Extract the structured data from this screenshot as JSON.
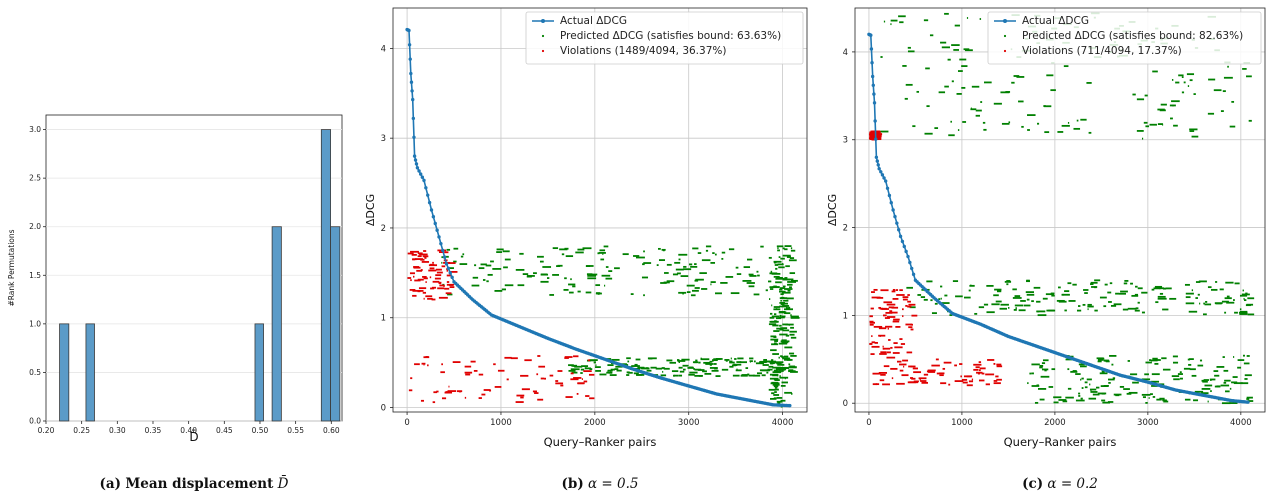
{
  "chart_data": [
    {
      "type": "bar",
      "panel": "a",
      "caption_label": "(a)",
      "caption": "Mean displacement",
      "caption_symbol": "D̄",
      "xlabel": "D̄",
      "ylabel": "#Rank Permutations",
      "xlim": [
        0.2,
        0.615
      ],
      "ylim": [
        0,
        3.15
      ],
      "xticks": [
        "0.20",
        "0.25",
        "0.30",
        "0.35",
        "0.40",
        "0.45",
        "0.50",
        "0.55",
        "0.60"
      ],
      "yticks": [
        "0.0",
        "0.5",
        "1.0",
        "1.5",
        "2.0",
        "2.5",
        "3.0"
      ],
      "bins": [
        {
          "x0": 0.219,
          "x1": 0.232,
          "count": 1
        },
        {
          "x0": 0.256,
          "x1": 0.268,
          "count": 1
        },
        {
          "x0": 0.493,
          "x1": 0.505,
          "count": 1
        },
        {
          "x0": 0.517,
          "x1": 0.53,
          "count": 2
        },
        {
          "x0": 0.586,
          "x1": 0.599,
          "count": 3
        },
        {
          "x0": 0.599,
          "x1": 0.612,
          "count": 2
        }
      ],
      "color": "#5b9bc8",
      "grid": "y"
    },
    {
      "type": "scatter",
      "panel": "b",
      "caption_label": "(b)",
      "caption": "α = 0.5",
      "xlabel": "Query–Ranker pairs",
      "ylabel": "ΔDCG",
      "xlim": [
        -150,
        4260
      ],
      "ylim": [
        -0.05,
        4.45
      ],
      "xticks": [
        "0",
        "1000",
        "2000",
        "3000",
        "4000"
      ],
      "yticks": [
        "0",
        "1",
        "2",
        "3",
        "4"
      ],
      "legend_position": "upper-right",
      "series": [
        {
          "name": "Actual ΔDCG",
          "color": "#1f77b4"
        },
        {
          "name": "Predicted ΔDCG (satisfies bound: 63.63%)",
          "color": "#008000"
        },
        {
          "name": "Violations (1489/4094, 36.37%)",
          "color": "#e00000"
        }
      ],
      "actual_curve": [
        [
          0,
          4.21
        ],
        [
          20,
          4.2
        ],
        [
          40,
          3.72
        ],
        [
          60,
          3.43
        ],
        [
          80,
          2.8
        ],
        [
          110,
          2.67
        ],
        [
          180,
          2.53
        ],
        [
          260,
          2.2
        ],
        [
          340,
          1.9
        ],
        [
          420,
          1.6
        ],
        [
          500,
          1.4
        ],
        [
          700,
          1.2
        ],
        [
          900,
          1.03
        ],
        [
          1200,
          0.9
        ],
        [
          1500,
          0.77
        ],
        [
          1800,
          0.65
        ],
        [
          2100,
          0.54
        ],
        [
          2400,
          0.43
        ],
        [
          2700,
          0.33
        ],
        [
          3000,
          0.24
        ],
        [
          3300,
          0.15
        ],
        [
          3600,
          0.09
        ],
        [
          3900,
          0.03
        ],
        [
          4094,
          0.02
        ]
      ],
      "predicted_bands": [
        {
          "x0": 350,
          "x1": 4090,
          "y0": 1.25,
          "y1": 1.8
        },
        {
          "x0": 1700,
          "x1": 4090,
          "y0": 0.35,
          "y1": 0.55
        },
        {
          "x0": 3850,
          "x1": 4090,
          "y0": 0.0,
          "y1": 1.8
        }
      ],
      "violation_bands": [
        {
          "x0": 0,
          "x1": 460,
          "y0": 1.2,
          "y1": 1.75
        },
        {
          "x0": 0,
          "x1": 2000,
          "y0": 0.05,
          "y1": 0.58
        }
      ],
      "grid": "both"
    },
    {
      "type": "scatter",
      "panel": "c",
      "caption_label": "(c)",
      "caption": "α = 0.2",
      "xlabel": "Query–Ranker pairs",
      "ylabel": "ΔDCG",
      "xlim": [
        -150,
        4260
      ],
      "ylim": [
        -0.1,
        4.5
      ],
      "xticks": [
        "0",
        "1000",
        "2000",
        "3000",
        "4000"
      ],
      "yticks": [
        "0",
        "1",
        "2",
        "3",
        "4"
      ],
      "legend_position": "upper-right",
      "series": [
        {
          "name": "Actual ΔDCG",
          "color": "#1f77b4"
        },
        {
          "name": "Predicted ΔDCG (satisfies bound: 82.63%)",
          "color": "#008000"
        },
        {
          "name": "Violations (711/4094, 17.37%)",
          "color": "#e00000"
        }
      ],
      "actual_curve": [
        [
          0,
          4.2
        ],
        [
          20,
          4.19
        ],
        [
          40,
          3.72
        ],
        [
          60,
          3.42
        ],
        [
          80,
          2.8
        ],
        [
          110,
          2.67
        ],
        [
          180,
          2.53
        ],
        [
          260,
          2.2
        ],
        [
          340,
          1.9
        ],
        [
          420,
          1.67
        ],
        [
          500,
          1.4
        ],
        [
          700,
          1.2
        ],
        [
          900,
          1.02
        ],
        [
          1200,
          0.9
        ],
        [
          1500,
          0.76
        ],
        [
          1800,
          0.65
        ],
        [
          2100,
          0.54
        ],
        [
          2400,
          0.43
        ],
        [
          2700,
          0.32
        ],
        [
          3000,
          0.24
        ],
        [
          3300,
          0.15
        ],
        [
          3600,
          0.09
        ],
        [
          3900,
          0.03
        ],
        [
          4094,
          0.01
        ]
      ],
      "predicted_bands": [
        {
          "x0": 80,
          "x1": 4090,
          "y0": 3.0,
          "y1": 4.45
        },
        {
          "x0": 400,
          "x1": 4090,
          "y0": 1.0,
          "y1": 1.4
        },
        {
          "x0": 1700,
          "x1": 4090,
          "y0": 0.0,
          "y1": 0.55
        }
      ],
      "violation_bands": [
        {
          "x0": 0,
          "x1": 60,
          "y0": 3.0,
          "y1": 3.1
        },
        {
          "x0": 0,
          "x1": 460,
          "y0": 0.5,
          "y1": 1.3
        },
        {
          "x0": 0,
          "x1": 1400,
          "y0": 0.2,
          "y1": 0.5
        }
      ],
      "grid": "both"
    }
  ]
}
